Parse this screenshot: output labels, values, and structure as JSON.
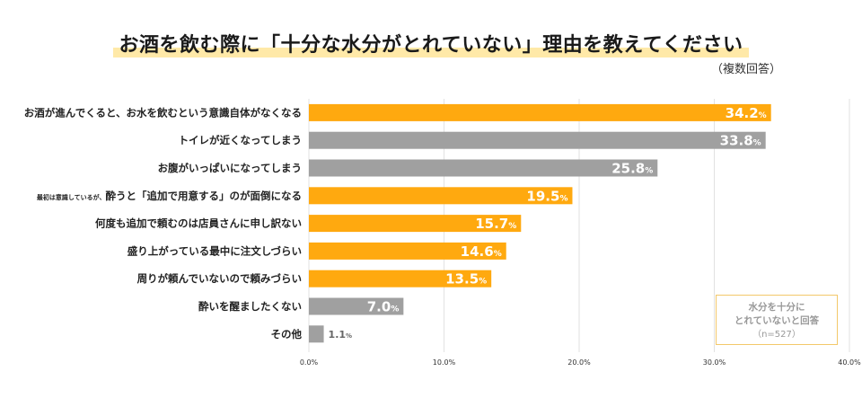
{
  "chart_data": {
    "type": "bar",
    "orientation": "horizontal",
    "title": "お酒を飲む際に「十分な水分がとれていない」理由を教えてください",
    "subtitle": "（複数回答）",
    "categories": [
      {
        "label": "お酒が進んでくると、お水を飲むという意識自体がなくなる",
        "prefix": ""
      },
      {
        "label": "トイレが近くなってしまう",
        "prefix": ""
      },
      {
        "label": "お腹がいっぱいになってしまう",
        "prefix": ""
      },
      {
        "label": "酔うと「追加で用意する」のが面倒になる",
        "prefix": "最初は意識しているが、"
      },
      {
        "label": "何度も追加で頼むのは店員さんに申し訳ない",
        "prefix": ""
      },
      {
        "label": "盛り上がっている最中に注文しづらい",
        "prefix": ""
      },
      {
        "label": "周りが頼んでいないので頼みづらい",
        "prefix": ""
      },
      {
        "label": "酔いを醒ましたくない",
        "prefix": ""
      },
      {
        "label": "その他",
        "prefix": ""
      }
    ],
    "values": [
      34.2,
      33.8,
      25.8,
      19.5,
      15.7,
      14.6,
      13.5,
      7.0,
      1.1
    ],
    "value_display": [
      "34.2",
      "33.8",
      "25.8",
      "19.5",
      "15.7",
      "14.6",
      "13.5",
      "7.0",
      "1.1"
    ],
    "value_suffix": "%",
    "highlight": [
      true,
      false,
      false,
      true,
      true,
      true,
      true,
      false,
      false
    ],
    "xlim": [
      0,
      40
    ],
    "xticks": [
      "0.0%",
      "10.0%",
      "20.0%",
      "30.0%",
      "40.0%"
    ],
    "grid": true,
    "colors": {
      "highlight": "#ffa90f",
      "other": "#a0a0a0",
      "grid": "#e2e2e2",
      "legend_border": "#f3c86a"
    }
  },
  "legend": {
    "line1": "水分を十分に",
    "line2": "とれていないと回答",
    "n": "（n=527）"
  }
}
